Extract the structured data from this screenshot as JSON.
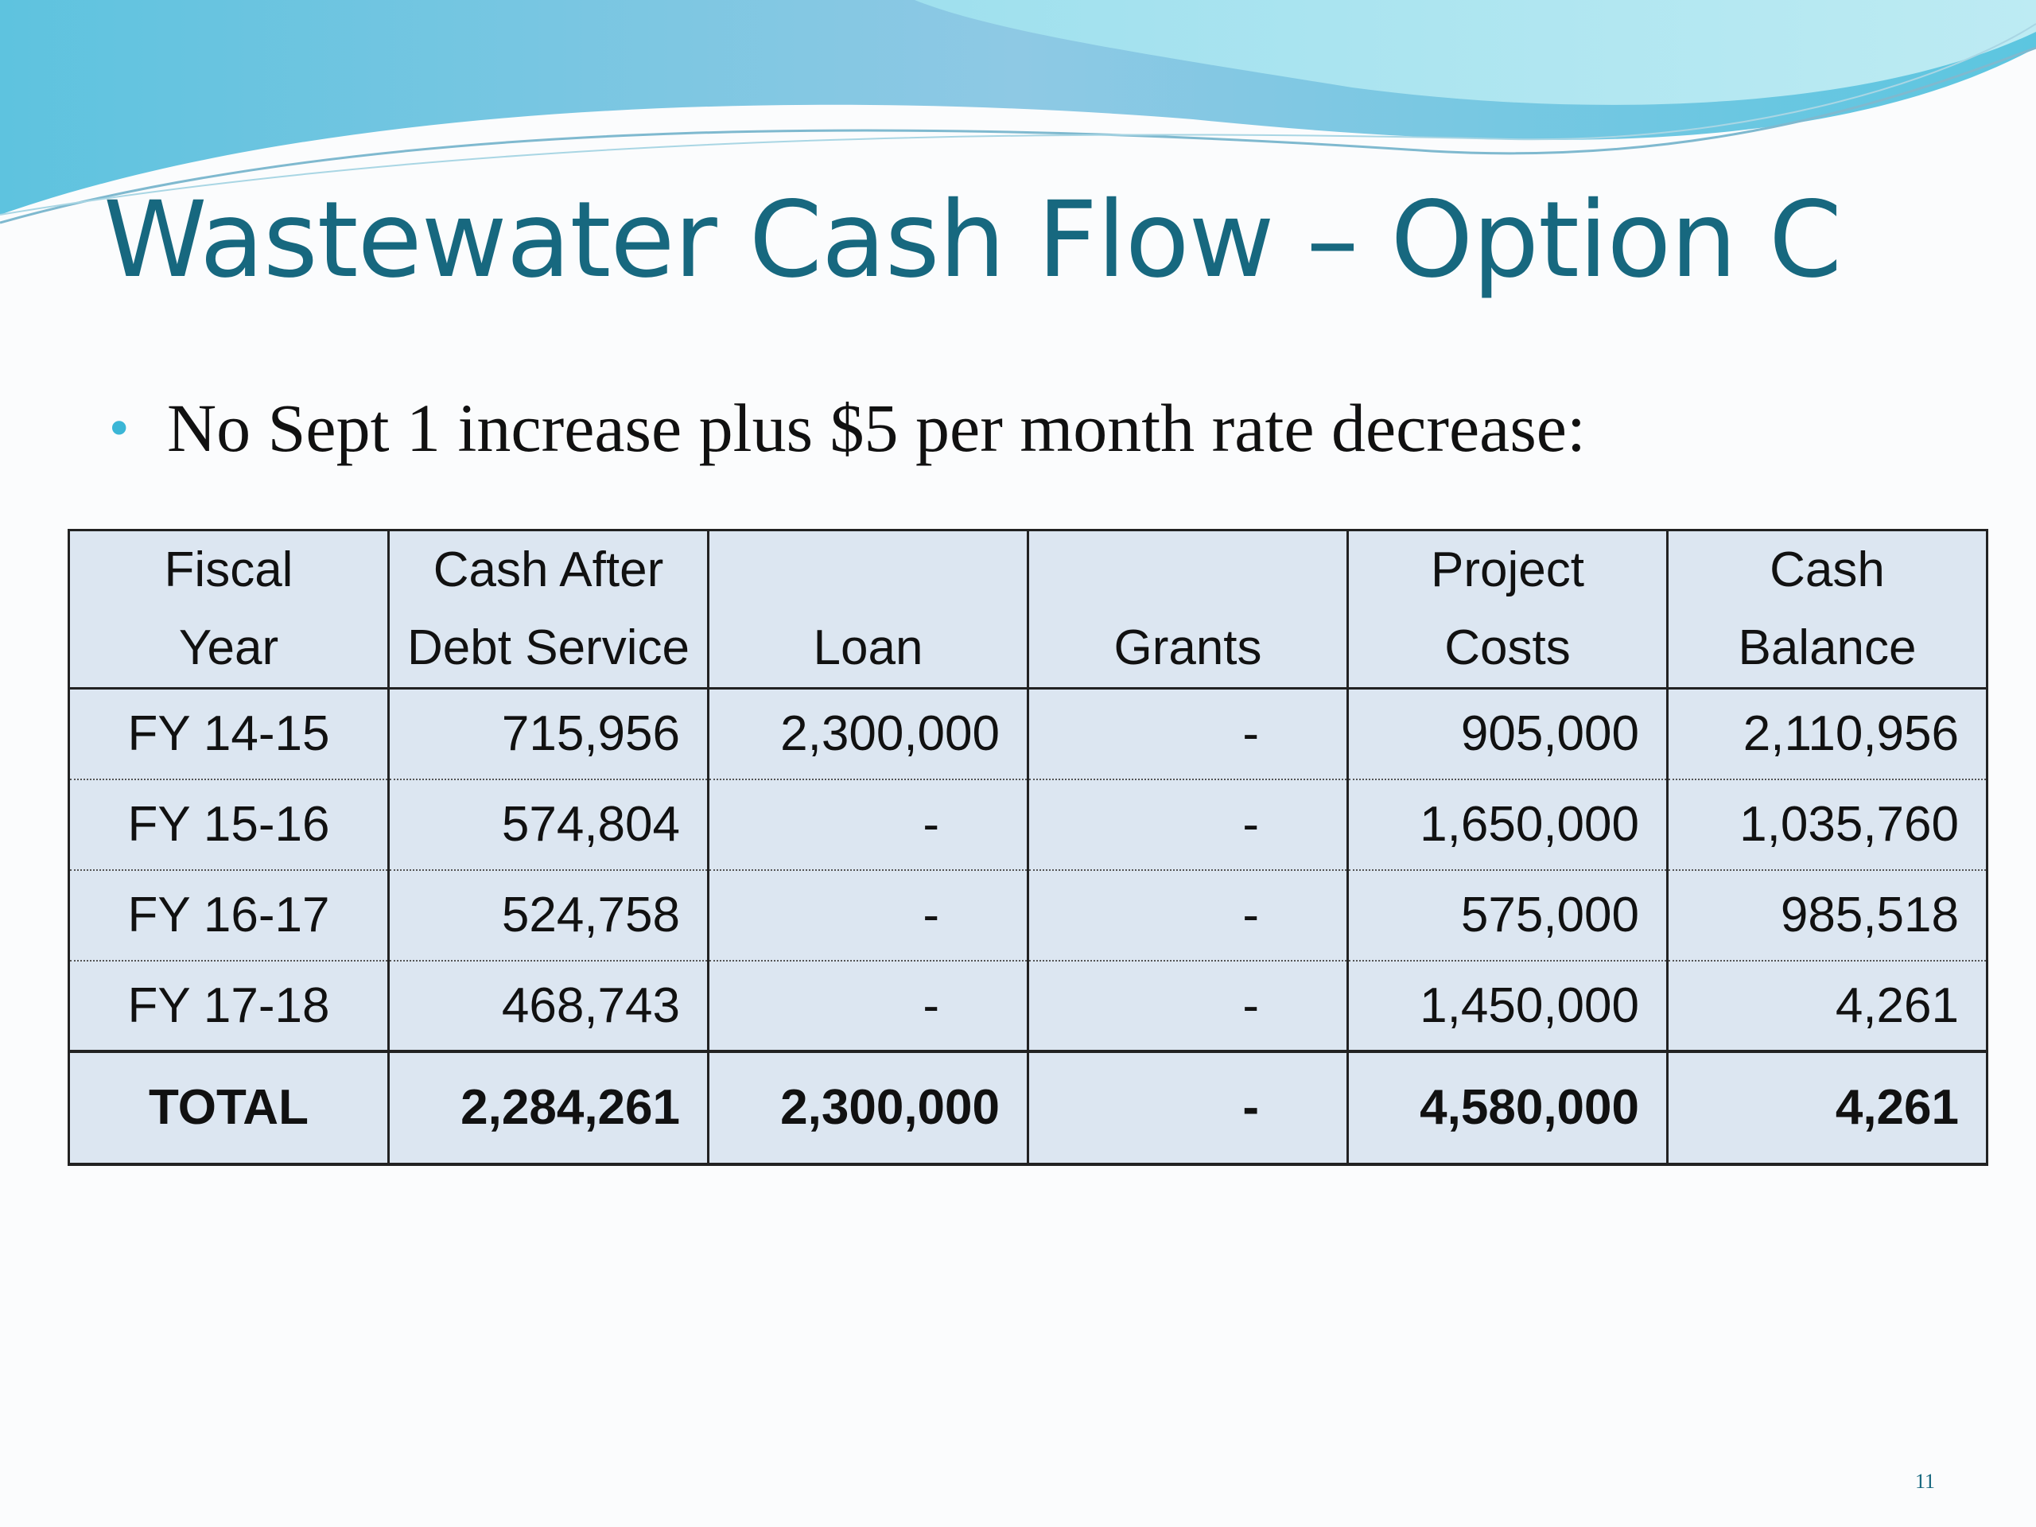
{
  "slide": {
    "title": "Wastewater Cash Flow – Option C",
    "bullet": "No Sept 1 increase plus $5 per month rate decrease:",
    "table": {
      "header": [
        [
          "Fiscal",
          "Year"
        ],
        [
          "Cash After",
          "Debt Service"
        ],
        [
          "Loan"
        ],
        [
          "Grants"
        ],
        [
          "Project",
          "Costs"
        ],
        [
          "Cash",
          "Balance"
        ]
      ],
      "rows": [
        [
          "FY 14-15",
          "715,956",
          "2,300,000",
          "-",
          "905,000",
          "2,110,956"
        ],
        [
          "FY 15-16",
          "574,804",
          "-",
          "-",
          "1,650,000",
          "1,035,760"
        ],
        [
          "FY 16-17",
          "524,758",
          "-",
          "-",
          "575,000",
          "985,518"
        ],
        [
          "FY 17-18",
          "468,743",
          "-",
          "-",
          "1,450,000",
          "4,261"
        ]
      ],
      "total": [
        "TOTAL",
        "2,284,261",
        "2,300,000",
        "-",
        "4,580,000",
        "4,261"
      ]
    },
    "page_number": "11"
  }
}
